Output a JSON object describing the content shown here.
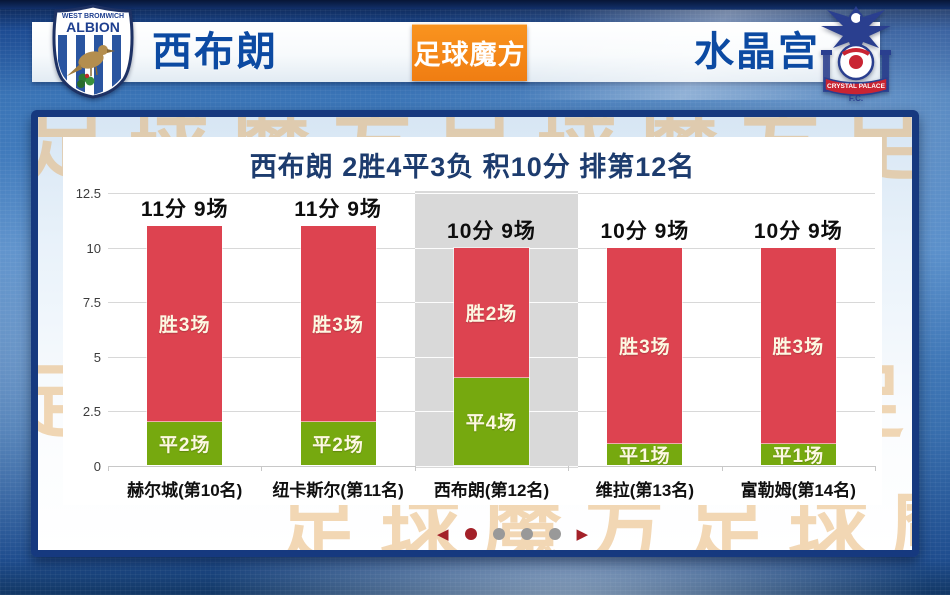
{
  "header": {
    "home_name": "西布朗",
    "away_name": "水晶宫",
    "logo_text": "足球魔方",
    "home_badge": {
      "line1": "WEST BROMWICH",
      "line2": "ALBION"
    },
    "away_badge": {
      "band": "CRYSTAL PALACE",
      "fc": "F.C."
    }
  },
  "watermark_text": "足球魔方足球魔方足球魔方",
  "chart_data": {
    "type": "bar",
    "stacked": true,
    "title": "西布朗 2胜4平3负 积10分 排第12名",
    "categories": [
      "赫尔城(第10名)",
      "纽卡斯尔(第11名)",
      "西布朗(第12名)",
      "维拉(第13名)",
      "富勒姆(第14名)"
    ],
    "series": [
      {
        "name": "draw-points",
        "color": "#76a90f",
        "values": [
          2,
          2,
          4,
          1,
          1
        ],
        "labels": [
          "平2场",
          "平2场",
          "平4场",
          "平1场",
          "平1场"
        ]
      },
      {
        "name": "win-points",
        "color": "#dd4350",
        "values": [
          9,
          9,
          6,
          9,
          9
        ],
        "labels": [
          "胜3场",
          "胜3场",
          "胜2场",
          "胜3场",
          "胜3场"
        ]
      }
    ],
    "totals": [
      11,
      11,
      10,
      10,
      10
    ],
    "bar_top_labels": [
      "11分 9场",
      "11分 9场",
      "10分 9场",
      "10分 9场",
      "10分 9场"
    ],
    "highlight_index": 2,
    "highlight_color": "#d9d9d9",
    "y_ticks": [
      0,
      2.5,
      5,
      7.5,
      10,
      12.5
    ],
    "ylim": [
      0,
      12.5
    ],
    "grid": true,
    "legend_position": "none",
    "xlabel": "",
    "ylabel": ""
  },
  "carousel": {
    "prev_arrow": "◀",
    "next_arrow": "▶",
    "dot_count": 4,
    "active_index": 0
  },
  "colors": {
    "accent_navy": "#16397f",
    "title_navy": "#1d3c6e",
    "team_blue": "#0c4aa2",
    "brand_orange": "#f07d12",
    "carousel_red": "#a32129",
    "dot_gray": "#999999"
  }
}
